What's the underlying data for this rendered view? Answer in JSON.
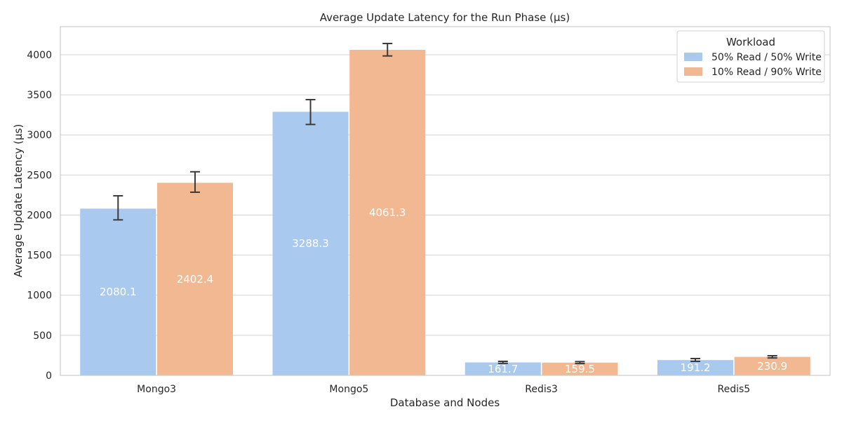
{
  "chart_data": {
    "type": "bar",
    "title": "Average Update Latency for the Run Phase (μs)",
    "xlabel": "Database and Nodes",
    "ylabel": "Average Update Latency (μs)",
    "categories": [
      "Mongo3",
      "Mongo5",
      "Redis3",
      "Redis5"
    ],
    "ylim": [
      0,
      4350
    ],
    "yticks": [
      0,
      500,
      1000,
      1500,
      2000,
      2500,
      3000,
      3500,
      4000
    ],
    "grid": true,
    "legend": {
      "title": "Workload",
      "placement": "top-right"
    },
    "series": [
      {
        "name": "50% Read / 50% Write",
        "color": "#a9c9ef",
        "values": [
          2080.1,
          3288.3,
          161.7,
          191.2
        ],
        "labels": [
          "2080.1",
          "3288.3",
          "161.7",
          "191.2"
        ],
        "error_low": [
          1940,
          3130,
          150,
          175
        ],
        "error_high": [
          2240,
          3440,
          175,
          210
        ]
      },
      {
        "name": "10% Read / 90% Write",
        "color": "#f1b891",
        "values": [
          2402.4,
          4061.3,
          159.5,
          230.9
        ],
        "labels": [
          "2402.4",
          "4061.3",
          "159.5",
          "230.9"
        ],
        "error_low": [
          2285,
          3985,
          148,
          218
        ],
        "error_high": [
          2540,
          4140,
          172,
          245
        ]
      }
    ]
  }
}
